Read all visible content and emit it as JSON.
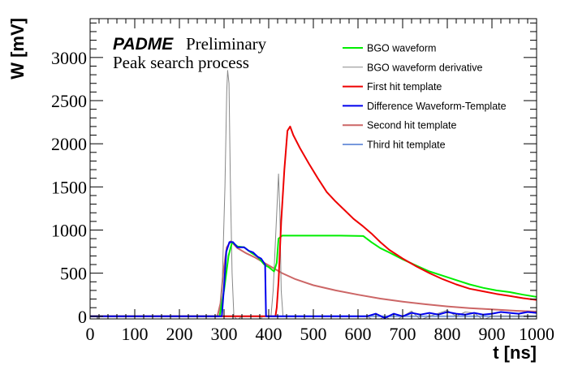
{
  "chart_data": {
    "type": "line",
    "title": "",
    "annotations": {
      "experiment": "PADME",
      "status": "Preliminary",
      "subtitle": "Peak search process"
    },
    "xlabel": "t [ns]",
    "ylabel": "W [mV]",
    "xlim": [
      0,
      1000
    ],
    "ylim": [
      -30,
      3450
    ],
    "xticks": [
      0,
      100,
      200,
      300,
      400,
      500,
      600,
      700,
      800,
      900,
      1000
    ],
    "yticks": [
      0,
      500,
      1000,
      1500,
      2000,
      2500,
      3000
    ],
    "grid": false,
    "legend_position": "top-right",
    "series": [
      {
        "name": "BGO waveform",
        "color": "#00ee00",
        "points": [
          [
            0,
            0
          ],
          [
            290,
            0
          ],
          [
            300,
            300
          ],
          [
            310,
            700
          ],
          [
            318,
            860
          ],
          [
            330,
            810
          ],
          [
            345,
            800
          ],
          [
            360,
            740
          ],
          [
            375,
            690
          ],
          [
            390,
            600
          ],
          [
            400,
            570
          ],
          [
            412,
            520
          ],
          [
            418,
            620
          ],
          [
            422,
            900
          ],
          [
            430,
            935
          ],
          [
            500,
            935
          ],
          [
            560,
            935
          ],
          [
            612,
            930
          ],
          [
            630,
            860
          ],
          [
            650,
            790
          ],
          [
            670,
            740
          ],
          [
            700,
            660
          ],
          [
            730,
            590
          ],
          [
            760,
            520
          ],
          [
            790,
            470
          ],
          [
            820,
            420
          ],
          [
            850,
            370
          ],
          [
            880,
            330
          ],
          [
            910,
            300
          ],
          [
            940,
            280
          ],
          [
            970,
            250
          ],
          [
            1000,
            225
          ]
        ]
      },
      {
        "name": "BGO waveform derivative",
        "color": "#888888",
        "points": [
          [
            0,
            0
          ],
          [
            15,
            0
          ],
          [
            16,
            -40
          ],
          [
            18,
            0
          ],
          [
            290,
            0
          ],
          [
            296,
            400
          ],
          [
            302,
            1500
          ],
          [
            306,
            2600
          ],
          [
            308,
            2850
          ],
          [
            311,
            2700
          ],
          [
            314,
            1600
          ],
          [
            318,
            500
          ],
          [
            322,
            0
          ],
          [
            330,
            -40
          ],
          [
            340,
            0
          ],
          [
            380,
            0
          ],
          [
            382,
            -40
          ],
          [
            386,
            0
          ],
          [
            405,
            0
          ],
          [
            410,
            300
          ],
          [
            418,
            1200
          ],
          [
            422,
            1650
          ],
          [
            425,
            1200
          ],
          [
            428,
            300
          ],
          [
            432,
            0
          ],
          [
            620,
            0
          ],
          [
            640,
            -60
          ],
          [
            660,
            0
          ],
          [
            680,
            -60
          ],
          [
            700,
            0
          ],
          [
            720,
            60
          ],
          [
            740,
            -40
          ],
          [
            760,
            0
          ],
          [
            800,
            70
          ],
          [
            820,
            0
          ],
          [
            840,
            50
          ],
          [
            860,
            40
          ],
          [
            880,
            -40
          ],
          [
            900,
            0
          ],
          [
            1000,
            0
          ]
        ]
      },
      {
        "name": "First hit template",
        "color": "#ee0000",
        "points": [
          [
            0,
            0
          ],
          [
            415,
            0
          ],
          [
            418,
            100
          ],
          [
            422,
            400
          ],
          [
            428,
            1100
          ],
          [
            435,
            1700
          ],
          [
            442,
            2150
          ],
          [
            448,
            2200
          ],
          [
            455,
            2100
          ],
          [
            470,
            1950
          ],
          [
            490,
            1770
          ],
          [
            510,
            1600
          ],
          [
            530,
            1440
          ],
          [
            550,
            1330
          ],
          [
            570,
            1230
          ],
          [
            590,
            1130
          ],
          [
            612,
            1040
          ],
          [
            630,
            960
          ],
          [
            650,
            860
          ],
          [
            670,
            770
          ],
          [
            700,
            670
          ],
          [
            730,
            580
          ],
          [
            760,
            500
          ],
          [
            790,
            430
          ],
          [
            820,
            370
          ],
          [
            850,
            320
          ],
          [
            880,
            290
          ],
          [
            910,
            260
          ],
          [
            940,
            235
          ],
          [
            970,
            210
          ],
          [
            1000,
            190
          ]
        ]
      },
      {
        "name": "Difference Waveform-Template",
        "color": "#0000ee",
        "points": [
          [
            0,
            0
          ],
          [
            295,
            0
          ],
          [
            300,
            350
          ],
          [
            305,
            750
          ],
          [
            312,
            860
          ],
          [
            320,
            860
          ],
          [
            330,
            800
          ],
          [
            345,
            800
          ],
          [
            355,
            760
          ],
          [
            365,
            740
          ],
          [
            375,
            690
          ],
          [
            383,
            670
          ],
          [
            392,
            600
          ],
          [
            394,
            0
          ],
          [
            620,
            0
          ],
          [
            640,
            30
          ],
          [
            660,
            -20
          ],
          [
            680,
            30
          ],
          [
            700,
            0
          ],
          [
            720,
            40
          ],
          [
            740,
            20
          ],
          [
            760,
            40
          ],
          [
            780,
            20
          ],
          [
            800,
            50
          ],
          [
            820,
            30
          ],
          [
            840,
            20
          ],
          [
            860,
            40
          ],
          [
            880,
            20
          ],
          [
            900,
            30
          ],
          [
            920,
            50
          ],
          [
            940,
            40
          ],
          [
            960,
            30
          ],
          [
            980,
            50
          ],
          [
            1000,
            40
          ]
        ]
      },
      {
        "name": "Second hit template",
        "color": "#cc6666",
        "points": [
          [
            0,
            0
          ],
          [
            285,
            0
          ],
          [
            292,
            150
          ],
          [
            298,
            500
          ],
          [
            306,
            800
          ],
          [
            315,
            870
          ],
          [
            330,
            790
          ],
          [
            350,
            730
          ],
          [
            370,
            680
          ],
          [
            390,
            620
          ],
          [
            410,
            560
          ],
          [
            430,
            500
          ],
          [
            460,
            430
          ],
          [
            500,
            360
          ],
          [
            550,
            300
          ],
          [
            600,
            250
          ],
          [
            650,
            205
          ],
          [
            700,
            170
          ],
          [
            750,
            140
          ],
          [
            800,
            115
          ],
          [
            850,
            95
          ],
          [
            900,
            80
          ],
          [
            950,
            65
          ],
          [
            1000,
            55
          ]
        ]
      },
      {
        "name": "Third hit template",
        "color": "#7799dd",
        "points": [
          [
            0,
            0
          ],
          [
            1000,
            0
          ]
        ]
      }
    ]
  }
}
